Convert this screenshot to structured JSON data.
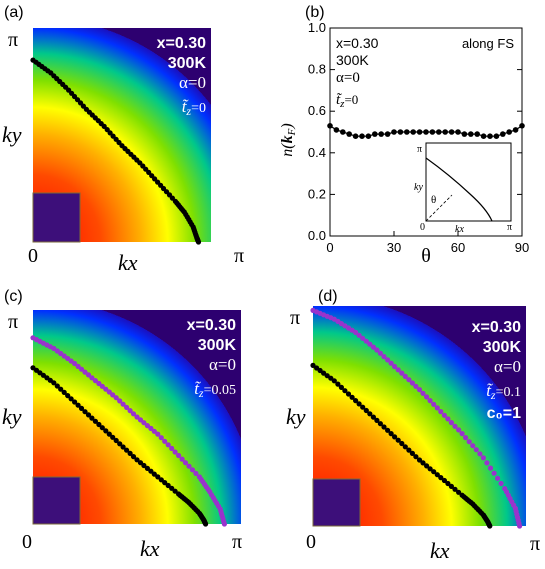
{
  "colors": {
    "fs_main": "#000000",
    "fs_shifted": "#9933cc",
    "corner_box": "#3d0f7a",
    "band_red": "#ff1a00",
    "band_yellow": "#ffff00",
    "band_green": "#00d040",
    "band_blue": "#0000ff",
    "band_indigo": "#2d0060"
  },
  "chart_data": [
    {
      "panel": "(a)",
      "type": "heatmap",
      "x_axis": {
        "label": "kx",
        "ticks": [
          "0",
          "π"
        ]
      },
      "y_axis": {
        "label": "ky",
        "ticks": [
          "π"
        ]
      },
      "info": {
        "doping": "x=0.30",
        "temperature": "300K",
        "alpha": "α=0",
        "tz_symbol": "t̃",
        "tz_sub": "z",
        "tz_value": "=0"
      },
      "fermi_surfaces": [
        {
          "color": "black",
          "points": [
            [
              0.0,
              0.85
            ],
            [
              0.1,
              0.79
            ],
            [
              0.2,
              0.71
            ],
            [
              0.3,
              0.62
            ],
            [
              0.4,
              0.54
            ],
            [
              0.5,
              0.45
            ],
            [
              0.6,
              0.37
            ],
            [
              0.7,
              0.28
            ],
            [
              0.8,
              0.19
            ],
            [
              0.85,
              0.14
            ],
            [
              0.9,
              0.07
            ],
            [
              0.92,
              0.02
            ],
            [
              0.93,
              0.0
            ]
          ]
        }
      ]
    },
    {
      "panel": "(b)",
      "type": "line",
      "xlabel": "θ",
      "ylabel": "n(kF)",
      "xlim": [
        0,
        90
      ],
      "ylim": [
        0.0,
        1.0
      ],
      "x_ticks": [
        "0",
        "30",
        "60",
        "90"
      ],
      "y_ticks": [
        "0.0",
        "0.2",
        "0.4",
        "0.6",
        "0.8",
        "1.0"
      ],
      "info": {
        "doping": "x=0.30",
        "temperature": "300K",
        "alpha": "α=0",
        "tz_symbol": "t̃",
        "tz_sub": "z",
        "tz_value": "=0",
        "note": "along FS"
      },
      "series": [
        {
          "x": [
            0,
            3,
            6,
            9,
            12,
            15,
            18,
            21,
            24,
            27,
            30,
            33,
            36,
            39,
            42,
            45,
            48,
            51,
            54,
            57,
            60,
            63,
            66,
            69,
            72,
            75,
            78,
            81,
            84,
            87,
            90
          ],
          "y": [
            0.53,
            0.51,
            0.5,
            0.49,
            0.48,
            0.48,
            0.48,
            0.49,
            0.49,
            0.49,
            0.5,
            0.5,
            0.5,
            0.5,
            0.5,
            0.5,
            0.5,
            0.5,
            0.5,
            0.5,
            0.5,
            0.49,
            0.49,
            0.49,
            0.48,
            0.48,
            0.48,
            0.49,
            0.5,
            0.51,
            0.53
          ]
        }
      ],
      "inset": {
        "x_label": "kx",
        "y_label": "ky",
        "angle_label": "θ",
        "x_ticks": [
          "0",
          "π"
        ],
        "y_ticks": [
          "π"
        ]
      }
    },
    {
      "panel": "(c)",
      "type": "heatmap",
      "x_axis": {
        "label": "kx",
        "ticks": [
          "0",
          "π"
        ]
      },
      "y_axis": {
        "label": "ky",
        "ticks": [
          "π"
        ]
      },
      "info": {
        "doping": "x=0.30",
        "temperature": "300K",
        "alpha": "α=0",
        "tz_symbol": "t̃",
        "tz_sub": "z",
        "tz_value": "=0.05"
      },
      "fermi_surfaces": [
        {
          "color": "black",
          "points": [
            [
              0.0,
              0.73
            ],
            [
              0.1,
              0.66
            ],
            [
              0.2,
              0.57
            ],
            [
              0.3,
              0.48
            ],
            [
              0.4,
              0.39
            ],
            [
              0.5,
              0.3
            ],
            [
              0.6,
              0.22
            ],
            [
              0.7,
              0.14
            ],
            [
              0.75,
              0.1
            ],
            [
              0.8,
              0.05
            ],
            [
              0.82,
              0.02
            ],
            [
              0.83,
              0.0
            ]
          ]
        },
        {
          "color": "purple",
          "points": [
            [
              0.0,
              0.87
            ],
            [
              0.1,
              0.82
            ],
            [
              0.2,
              0.75
            ],
            [
              0.3,
              0.67
            ],
            [
              0.4,
              0.59
            ],
            [
              0.5,
              0.5
            ],
            [
              0.6,
              0.42
            ],
            [
              0.7,
              0.32
            ],
            [
              0.8,
              0.22
            ],
            [
              0.85,
              0.15
            ],
            [
              0.9,
              0.07
            ],
            [
              0.92,
              0.0
            ]
          ]
        }
      ]
    },
    {
      "panel": "(d)",
      "type": "heatmap",
      "x_axis": {
        "label": "kx",
        "ticks": [
          "0",
          "π"
        ]
      },
      "y_axis": {
        "label": "ky",
        "ticks": [
          "π"
        ]
      },
      "info": {
        "doping": "x=0.30",
        "temperature": "300K",
        "alpha": "α=0",
        "tz_symbol": "t̃",
        "tz_sub": "z",
        "tz_value": "=0.1",
        "extra": "c₀=1"
      },
      "fermi_surfaces": [
        {
          "color": "black",
          "points": [
            [
              0.0,
              0.73
            ],
            [
              0.1,
              0.66
            ],
            [
              0.2,
              0.57
            ],
            [
              0.3,
              0.48
            ],
            [
              0.4,
              0.39
            ],
            [
              0.5,
              0.3
            ],
            [
              0.6,
              0.22
            ],
            [
              0.7,
              0.14
            ],
            [
              0.75,
              0.1
            ],
            [
              0.8,
              0.05
            ],
            [
              0.82,
              0.02
            ],
            [
              0.83,
              0.0
            ]
          ]
        },
        {
          "color": "purple",
          "points": [
            [
              0.0,
              0.98
            ],
            [
              0.1,
              0.94
            ],
            [
              0.2,
              0.88
            ],
            [
              0.3,
              0.8
            ],
            [
              0.4,
              0.71
            ],
            [
              0.5,
              0.62
            ],
            [
              0.6,
              0.52
            ],
            [
              0.7,
              0.42
            ],
            [
              0.8,
              0.31
            ],
            [
              0.9,
              0.17
            ],
            [
              0.95,
              0.08
            ],
            [
              0.97,
              0.0
            ]
          ]
        }
      ]
    }
  ]
}
